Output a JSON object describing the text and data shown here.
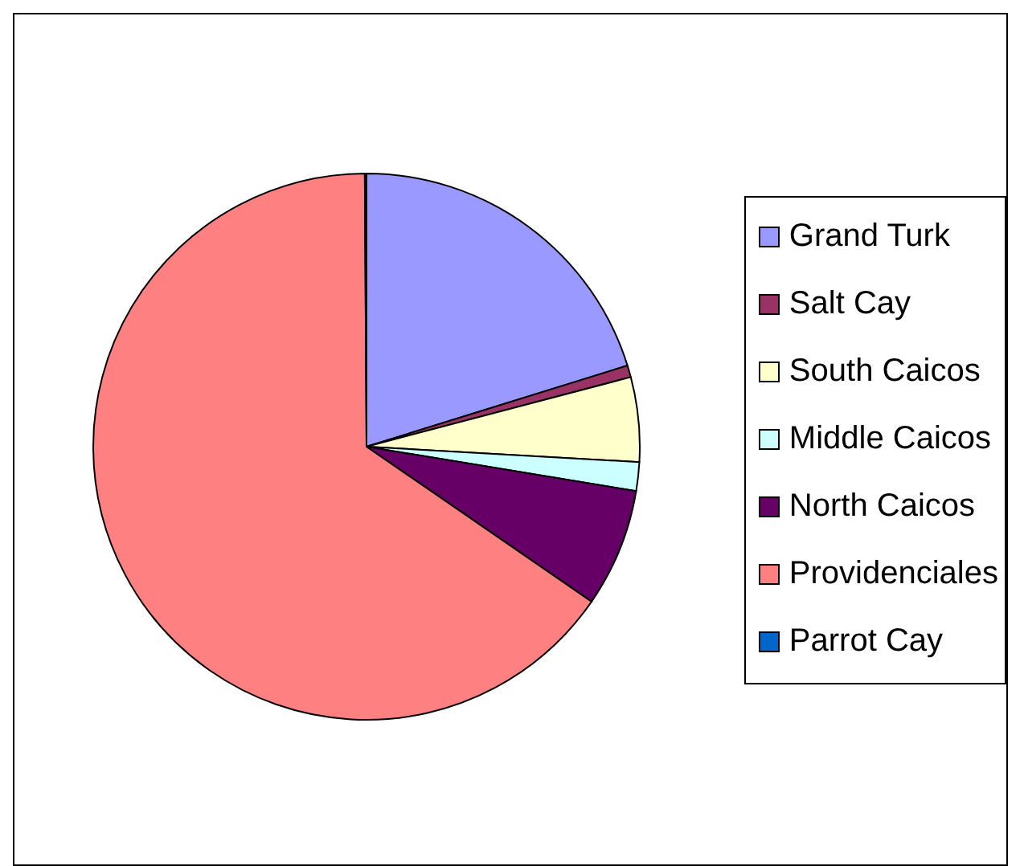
{
  "chart_data": {
    "type": "pie",
    "categories": [
      "Grand Turk",
      "Salt Cay",
      "South Caicos",
      "Middle Caicos",
      "North Caicos",
      "Providenciales",
      "Parrot Cay"
    ],
    "values": [
      20.2,
      0.7,
      5.0,
      1.7,
      7.0,
      65.3,
      0.1
    ],
    "colors": [
      "#9999ff",
      "#993366",
      "#ffffcc",
      "#ccffff",
      "#660066",
      "#ff8080",
      "#0066cc"
    ],
    "legend": "right"
  }
}
